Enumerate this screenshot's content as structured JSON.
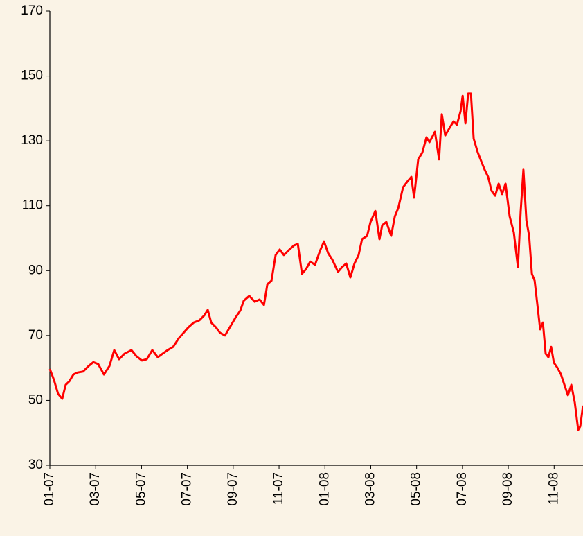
{
  "chart_data": {
    "type": "line",
    "x": [
      0,
      0.18,
      0.36,
      0.54,
      0.69,
      0.85,
      1.03,
      1.21,
      1.45,
      1.69,
      1.9,
      2.11,
      2.36,
      2.6,
      2.81,
      3.02,
      3.26,
      3.56,
      3.78,
      4.02,
      4.23,
      4.47,
      4.71,
      4.92,
      5.14,
      5.38,
      5.62,
      5.83,
      6.04,
      6.28,
      6.53,
      6.74,
      6.89,
      7.04,
      7.25,
      7.43,
      7.64,
      7.85,
      8.1,
      8.31,
      8.46,
      8.7,
      8.94,
      9.15,
      9.34,
      9.49,
      9.67,
      9.85,
      10.03,
      10.21,
      10.45,
      10.66,
      10.82,
      11.0,
      11.18,
      11.36,
      11.57,
      11.78,
      11.96,
      12.14,
      12.33,
      12.57,
      12.75,
      12.93,
      13.11,
      13.29,
      13.47,
      13.62,
      13.84,
      13.99,
      14.2,
      14.38,
      14.5,
      14.68,
      14.89,
      15.05,
      15.2,
      15.41,
      15.59,
      15.77,
      15.89,
      16.07,
      16.25,
      16.43,
      16.56,
      16.8,
      16.98,
      17.1,
      17.25,
      17.43,
      17.61,
      17.76,
      17.92,
      18.01,
      18.13,
      18.25,
      18.37,
      18.49,
      18.67,
      18.85,
      18.97,
      19.12,
      19.27,
      19.43,
      19.58,
      19.73,
      19.88,
      20.06,
      20.24,
      20.42,
      20.54,
      20.66,
      20.79,
      20.91,
      21.03,
      21.15,
      21.27,
      21.39,
      21.51,
      21.63,
      21.75,
      21.87,
      21.99,
      22.14,
      22.3,
      22.45,
      22.6,
      22.75,
      22.9,
      23.05,
      23.14,
      23.26
    ],
    "series": [
      {
        "color": "#ff0000",
        "values": [
          59.7,
          56.3,
          52.0,
          50.5,
          54.8,
          55.9,
          58.0,
          58.6,
          58.9,
          60.6,
          61.8,
          61.2,
          58.0,
          60.6,
          65.5,
          62.7,
          64.4,
          65.5,
          63.6,
          62.3,
          62.7,
          65.5,
          63.3,
          64.4,
          65.5,
          66.5,
          69.1,
          70.8,
          72.5,
          74.0,
          74.7,
          76.2,
          77.9,
          74.0,
          72.5,
          70.8,
          70.0,
          72.5,
          75.5,
          77.7,
          80.7,
          82.2,
          80.4,
          81.1,
          79.4,
          85.8,
          86.9,
          94.8,
          96.5,
          94.8,
          96.5,
          97.8,
          98.2,
          89.0,
          90.5,
          92.8,
          91.8,
          96.0,
          99.0,
          95.4,
          93.3,
          89.6,
          91.1,
          92.2,
          87.9,
          92.2,
          94.8,
          99.7,
          100.7,
          105.0,
          108.4,
          99.7,
          104.0,
          105.0,
          100.7,
          106.7,
          109.3,
          115.7,
          117.4,
          118.9,
          112.5,
          124.3,
          126.4,
          131.1,
          129.6,
          132.8,
          124.3,
          138.2,
          131.7,
          133.9,
          136.0,
          135.0,
          139.2,
          143.9,
          135.4,
          144.6,
          144.6,
          130.7,
          126.4,
          123.2,
          121.1,
          118.9,
          114.6,
          113.1,
          116.8,
          113.6,
          116.8,
          106.7,
          101.8,
          91.1,
          108.2,
          121.1,
          105.5,
          100.7,
          89.0,
          86.9,
          79.4,
          71.9,
          74.0,
          64.4,
          63.3,
          66.5,
          61.6,
          60.1,
          58.0,
          54.8,
          51.6,
          54.8,
          49.4,
          40.9,
          42.0,
          48.4
        ]
      }
    ],
    "xlim": [
      0,
      23.26
    ],
    "xticks": [
      {
        "value": 0,
        "label": "01-07"
      },
      {
        "value": 2,
        "label": "03-07"
      },
      {
        "value": 4,
        "label": "05-07"
      },
      {
        "value": 6,
        "label": "07-07"
      },
      {
        "value": 8,
        "label": "09-07"
      },
      {
        "value": 10,
        "label": "11-07"
      },
      {
        "value": 12,
        "label": "01-08"
      },
      {
        "value": 14,
        "label": "03-08"
      },
      {
        "value": 16,
        "label": "05-08"
      },
      {
        "value": 18,
        "label": "07-08"
      },
      {
        "value": 20,
        "label": "09-08"
      },
      {
        "value": 22,
        "label": "11-08"
      }
    ],
    "ylim": [
      30,
      170
    ],
    "yticks": [
      30,
      50,
      70,
      90,
      110,
      130,
      150,
      170
    ],
    "grid": false
  }
}
